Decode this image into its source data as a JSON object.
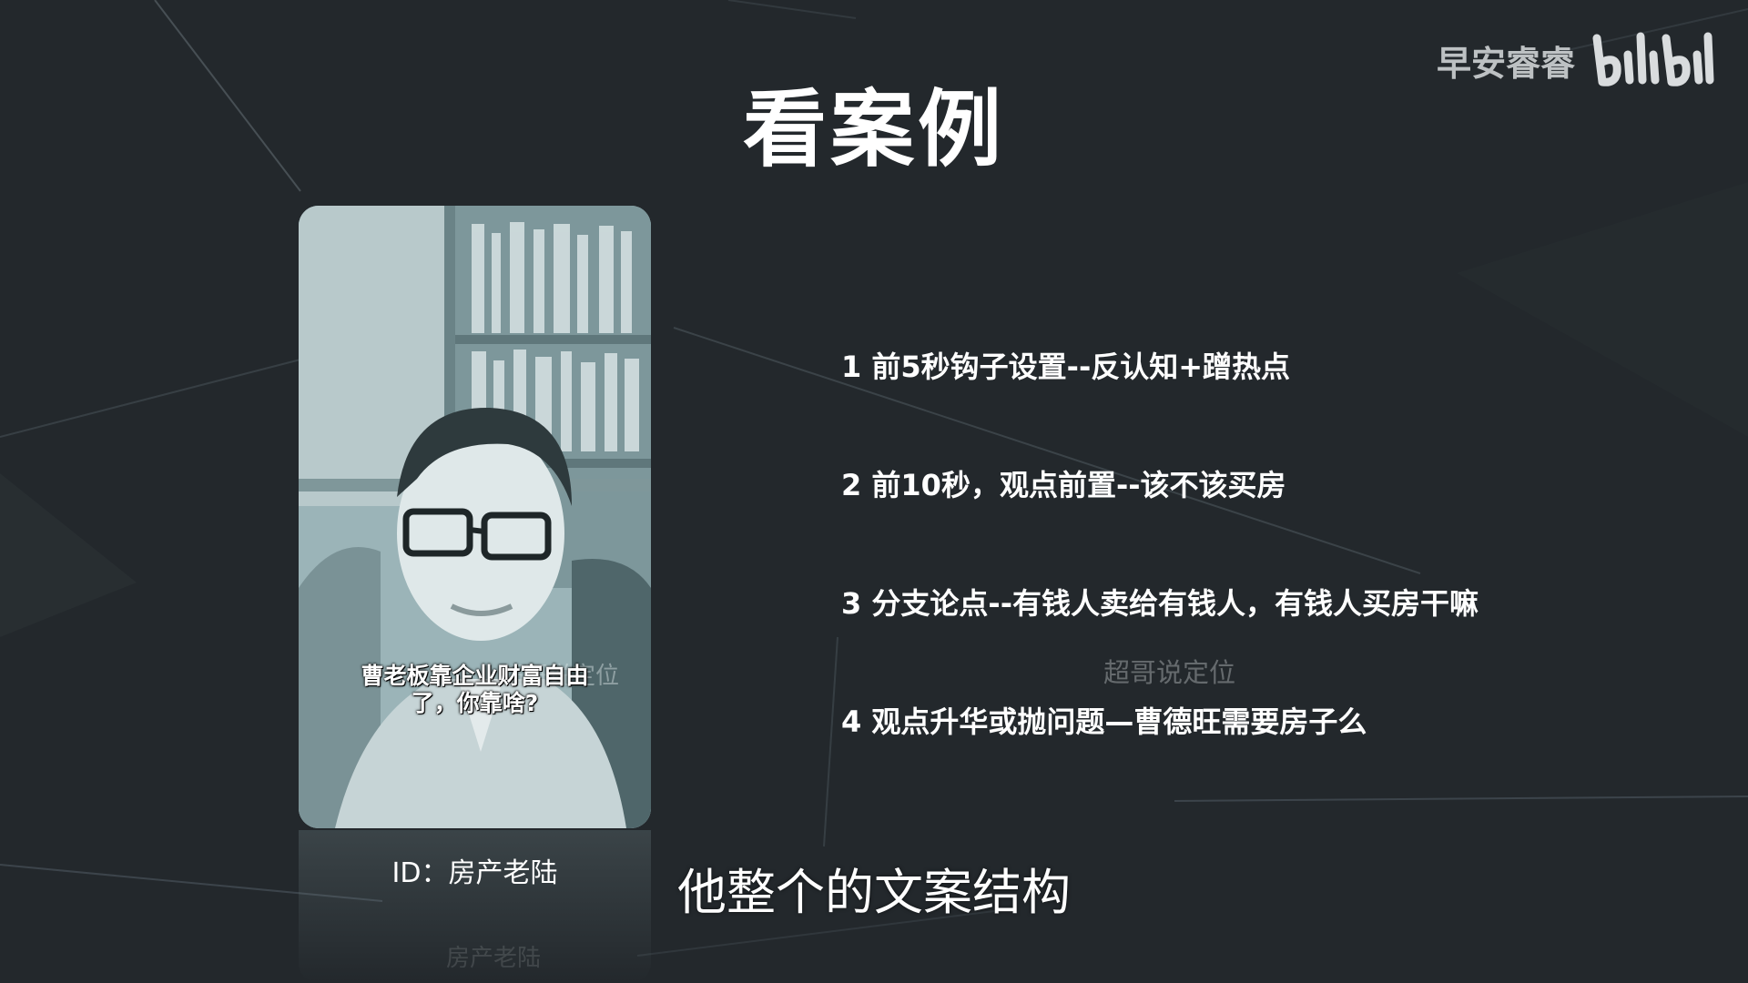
{
  "slide": {
    "title": "看案例",
    "watermark_text": "早安睿睿",
    "watermark_logo": "bilibili-logo",
    "video": {
      "caption_line1": "曹老板靠企业财富自由",
      "caption_line2": "了，你靠啥?",
      "watermark": "超哥说定位",
      "reflection_text": "房产老陆"
    },
    "account_id": "ID：房产老陆",
    "points": [
      "1 前5秒钩子设置--反认知+蹭热点",
      "2 前10秒，观点前置--该不该买房",
      "3 分支论点--有钱人卖给有钱人，有钱人买房干嘛",
      "4 观点升华或抛问题—曹德旺需要房子么"
    ],
    "slide_watermark": "超哥说定位",
    "subtitle": "他整个的文案结构"
  },
  "colors": {
    "background": "#23282c",
    "text": "#ffffff",
    "video_tint": "#8fa9ad"
  }
}
